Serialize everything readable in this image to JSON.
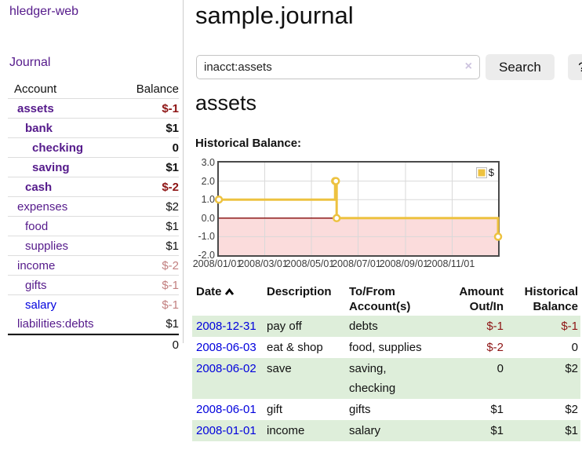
{
  "app": {
    "title": "hledger-web"
  },
  "nav": {
    "journal": "Journal"
  },
  "sidebar_accounts": {
    "col_account": "Account",
    "col_balance": "Balance",
    "rows": [
      {
        "name": "assets",
        "depth": 1,
        "bold": true,
        "balance": "$-1",
        "balance_style": "negative"
      },
      {
        "name": "bank",
        "depth": 2,
        "bold": true,
        "balance": "$1",
        "balance_style": "normal"
      },
      {
        "name": "checking",
        "depth": 3,
        "bold": true,
        "balance": "0",
        "balance_style": "normal"
      },
      {
        "name": "saving",
        "depth": 3,
        "bold": true,
        "balance": "$1",
        "balance_style": "normal"
      },
      {
        "name": "cash",
        "depth": 2,
        "bold": true,
        "balance": "$-2",
        "balance_style": "negative"
      },
      {
        "name": "expenses",
        "depth": 1,
        "bold": false,
        "balance": "$2",
        "balance_style": "normal"
      },
      {
        "name": "food",
        "depth": 2,
        "bold": false,
        "balance": "$1",
        "balance_style": "normal"
      },
      {
        "name": "supplies",
        "depth": 2,
        "bold": false,
        "balance": "$1",
        "balance_style": "normal"
      },
      {
        "name": "income",
        "depth": 1,
        "bold": false,
        "balance": "$-2",
        "balance_style": "negative-soft"
      },
      {
        "name": "gifts",
        "depth": 2,
        "bold": false,
        "balance": "$-1",
        "balance_style": "negative-soft"
      },
      {
        "name": "salary",
        "depth": 2,
        "bold": false,
        "balance": "$-1",
        "balance_style": "negative-soft",
        "link_color": "blue"
      },
      {
        "name": "liabilities:debts",
        "depth": 1,
        "bold": false,
        "balance": "$1",
        "balance_style": "normal"
      }
    ],
    "total": "0"
  },
  "page": {
    "title": "sample.journal"
  },
  "search": {
    "value": "inacct:assets",
    "clear_icon": "×",
    "search_label": "Search",
    "help_label": "?"
  },
  "section": {
    "heading": "assets",
    "chart_label": "Historical Balance:"
  },
  "chart_data": {
    "type": "line",
    "style": "steps",
    "title": "Historical Balance",
    "series": [
      {
        "name": "$",
        "points": [
          [
            "2008-01-01",
            1
          ],
          [
            "2008-06-01",
            2
          ],
          [
            "2008-06-02",
            2
          ],
          [
            "2008-06-03",
            0
          ],
          [
            "2008-12-31",
            -1
          ]
        ]
      }
    ],
    "x_range": [
      "2008-01-01",
      "2008-12-31"
    ],
    "x_ticks": [
      "2008/01/01",
      "2008/03/01",
      "2008/05/01",
      "2008/07/01",
      "2008/09/01",
      "2008/11/01"
    ],
    "y_range": [
      -2,
      3
    ],
    "y_ticks": [
      "3.0",
      "2.0",
      "1.0",
      "0.0",
      "-1.0",
      "-2.0"
    ],
    "grid": true,
    "negative_zone_shaded": true,
    "legend": {
      "label": "$",
      "position": "top-right"
    }
  },
  "register": {
    "columns": [
      {
        "l1": "Date",
        "l2": "",
        "align": "left",
        "sorted": "asc"
      },
      {
        "l1": "Description",
        "l2": "",
        "align": "left"
      },
      {
        "l1": "To/From",
        "l2": "Account(s)",
        "align": "left"
      },
      {
        "l1": "Amount",
        "l2": "Out/In",
        "align": "right"
      },
      {
        "l1": "Historical",
        "l2": "Balance",
        "align": "right"
      }
    ],
    "rows": [
      {
        "date": "2008-12-31",
        "description": "pay off",
        "accounts": "debts",
        "amount": "$-1",
        "amount_negative": true,
        "balance": "$-1",
        "balance_negative": true
      },
      {
        "date": "2008-06-03",
        "description": "eat & shop",
        "accounts": "food, supplies",
        "amount": "$-2",
        "amount_negative": true,
        "balance": "0",
        "balance_negative": false
      },
      {
        "date": "2008-06-02",
        "description": "save",
        "accounts": "saving, checking",
        "amount": "0",
        "amount_negative": false,
        "balance": "$2",
        "balance_negative": false
      },
      {
        "date": "2008-06-01",
        "description": "gift",
        "accounts": "gifts",
        "amount": "$1",
        "amount_negative": false,
        "balance": "$2",
        "balance_negative": false
      },
      {
        "date": "2008-01-01",
        "description": "income",
        "accounts": "salary",
        "amount": "$1",
        "amount_negative": false,
        "balance": "$1",
        "balance_negative": false
      }
    ]
  },
  "colors": {
    "link_purple": "#551a8b",
    "link_blue": "#0000dd",
    "negative": "#8e1515",
    "negative_soft": "#c28080",
    "row_green": "#deeeda",
    "series_yellow": "#edc240",
    "zero_line": "#8c1a1a",
    "negative_fill": "#fbdcdc",
    "gridline": "#d9d9d9"
  }
}
